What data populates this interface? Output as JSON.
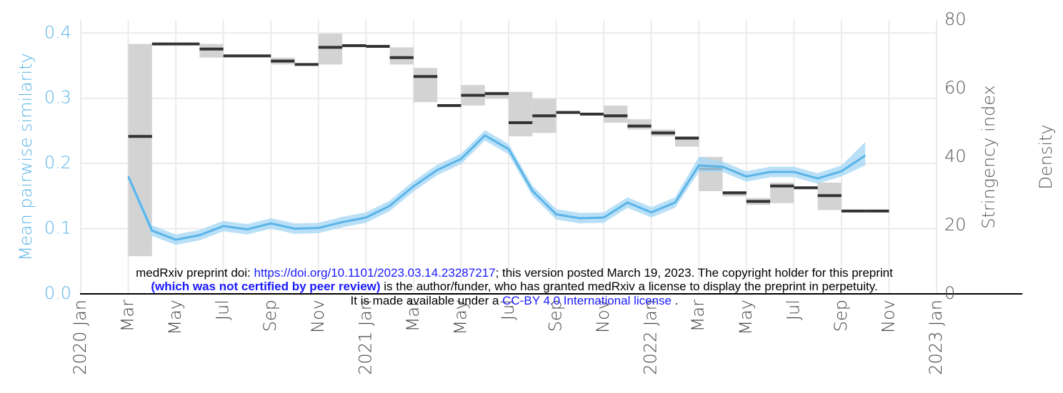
{
  "chart_data": {
    "type": "line-range",
    "y_label": "Mean pairwise similarity",
    "y2_label": "Stringency index",
    "y3_label": "Density",
    "xlim": [
      "2020-01",
      "2023-01"
    ],
    "xticks": [
      {
        "value": "2020-01",
        "label": "2020 Jan"
      },
      {
        "value": "2020-03",
        "label": "Mar"
      },
      {
        "value": "2020-05",
        "label": "May"
      },
      {
        "value": "2020-07",
        "label": "Jul"
      },
      {
        "value": "2020-09",
        "label": "Sep"
      },
      {
        "value": "2020-11",
        "label": "Nov"
      },
      {
        "value": "2021-01",
        "label": "2021 Jan"
      },
      {
        "value": "2021-03",
        "label": "Mar"
      },
      {
        "value": "2021-05",
        "label": "May"
      },
      {
        "value": "2021-07",
        "label": "Jul"
      },
      {
        "value": "2021-09",
        "label": "Sep"
      },
      {
        "value": "2021-11",
        "label": "Nov"
      },
      {
        "value": "2022-01",
        "label": "2022 Jan"
      },
      {
        "value": "2022-03",
        "label": "Mar"
      },
      {
        "value": "2022-05",
        "label": "May"
      },
      {
        "value": "2022-07",
        "label": "Jul"
      },
      {
        "value": "2022-09",
        "label": "Sep"
      },
      {
        "value": "2022-11",
        "label": "Nov"
      },
      {
        "value": "2023-01",
        "label": "2023 Jan"
      }
    ],
    "ylim": [
      0,
      0.42
    ],
    "yticks": [
      {
        "value": 0,
        "label": "0.0"
      },
      0.1,
      0.2,
      0.3,
      0.4
    ],
    "y2lim": [
      0,
      80
    ],
    "y2ticks": [
      0,
      20,
      40,
      60,
      80
    ],
    "grid": true,
    "x": [
      "2020-03",
      "2020-04",
      "2020-05",
      "2020-06",
      "2020-07",
      "2020-08",
      "2020-09",
      "2020-10",
      "2020-11",
      "2020-12",
      "2021-01",
      "2021-02",
      "2021-03",
      "2021-04",
      "2021-05",
      "2021-06",
      "2021-07",
      "2021-08",
      "2021-09",
      "2021-10",
      "2021-11",
      "2021-12",
      "2022-01",
      "2022-02",
      "2022-03",
      "2022-04",
      "2022-05",
      "2022-06",
      "2022-07",
      "2022-08",
      "2022-09",
      "2022-10"
    ],
    "similarity": {
      "color": "#5ab4e8",
      "band_color": "#a8d8f5",
      "values": [
        0.18,
        0.097,
        0.083,
        0.09,
        0.104,
        0.099,
        0.108,
        0.1,
        0.101,
        0.11,
        0.117,
        0.135,
        0.165,
        0.19,
        0.207,
        0.243,
        0.222,
        0.158,
        0.122,
        0.116,
        0.117,
        0.14,
        0.125,
        0.14,
        0.197,
        0.195,
        0.18,
        0.187,
        0.187,
        0.177,
        0.188,
        0.212
      ],
      "lower": [
        0.175,
        0.089,
        0.075,
        0.082,
        0.096,
        0.091,
        0.1,
        0.092,
        0.093,
        0.102,
        0.109,
        0.127,
        0.157,
        0.182,
        0.199,
        0.235,
        0.214,
        0.15,
        0.114,
        0.108,
        0.109,
        0.132,
        0.117,
        0.132,
        0.187,
        0.187,
        0.172,
        0.179,
        0.179,
        0.169,
        0.18,
        0.197
      ],
      "upper": [
        0.185,
        0.105,
        0.091,
        0.098,
        0.112,
        0.107,
        0.116,
        0.108,
        0.109,
        0.118,
        0.125,
        0.143,
        0.173,
        0.198,
        0.215,
        0.251,
        0.23,
        0.166,
        0.13,
        0.124,
        0.125,
        0.148,
        0.133,
        0.148,
        0.21,
        0.203,
        0.188,
        0.195,
        0.195,
        0.185,
        0.197,
        0.233
      ]
    },
    "stringency": {
      "axis": "y2",
      "color": "#333333",
      "range_color": "#d3d3d3",
      "values": [
        46,
        73,
        73,
        71.5,
        69.5,
        69.5,
        68,
        67,
        72,
        72.5,
        72.3,
        69,
        63.5,
        55,
        58,
        58.5,
        50,
        52,
        53,
        52.5,
        52,
        49,
        47,
        45.5,
        36.5,
        29.5,
        27,
        31.5,
        31,
        28.7,
        24.2,
        24.2
      ],
      "min": [
        11,
        73,
        73,
        69,
        69.5,
        69.5,
        67,
        67,
        67,
        72.5,
        72.3,
        67,
        56,
        55,
        55,
        57,
        46,
        47,
        53,
        52.5,
        50,
        48,
        46,
        43,
        30,
        28.5,
        26,
        26.5,
        31,
        24.5,
        24.2,
        24.2
      ],
      "max": [
        73,
        73,
        73,
        73,
        69.5,
        69.5,
        69,
        67,
        76,
        72.5,
        72.3,
        72,
        66,
        55,
        61,
        59,
        59,
        57,
        53,
        52.5,
        55,
        51,
        48,
        46,
        40,
        30,
        28,
        32.5,
        31,
        32.5,
        24.2,
        24.2
      ]
    }
  },
  "watermark": {
    "line1_a": "medRxiv preprint doi: ",
    "doi": "https://doi.org/10.1101/2023.03.14.23287217",
    "line1_b": "; this version posted March 19, 2023. The copyright holder for this preprint",
    "line2_bold": "(which was not certified by peer review)",
    "line2_b": " is the author/funder, who has granted medRxiv a license to display the preprint in perpetuity.",
    "line3_a": "It is made available under a ",
    "license": "CC-BY 4.0 International license",
    "line3_b": " ."
  }
}
